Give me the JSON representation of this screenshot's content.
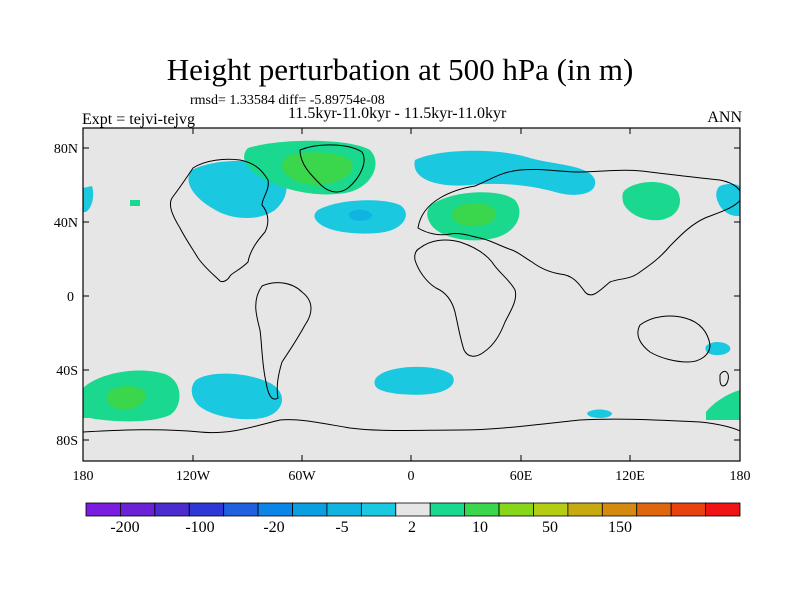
{
  "title": "Height perturbation at 500 hPa (in m)",
  "stats": "rmsd= 1.33584  diff= -5.89754e-08",
  "experiment": "Expt = tejvi-tejvg",
  "subtitle": "11.5kyr-11.0kyr - 11.5kyr-11.0kyr",
  "season": "ANN",
  "axes": {
    "lat_ticks": [
      "80N",
      "40N",
      "0",
      "40S",
      "80S"
    ],
    "lon_ticks": [
      "180",
      "120W",
      "60W",
      "0",
      "60E",
      "120E",
      "180"
    ]
  },
  "colorbar": {
    "colors": [
      "#7b1de0",
      "#6b22d6",
      "#4a2ccf",
      "#2f37d6",
      "#1f5fe0",
      "#0b86e8",
      "#0a9fe0",
      "#0fb4e0",
      "#1ac8df",
      "#e6e6e6",
      "#1ad98e",
      "#3ad64b",
      "#87d61a",
      "#b4cc12",
      "#c7aa10",
      "#d48a0e",
      "#e0660e",
      "#e8420e",
      "#f01414"
    ],
    "labels": [
      "-200",
      "-100",
      "-20",
      "-5",
      "2",
      "10",
      "50",
      "150"
    ]
  },
  "colors": {
    "ocean": "#e6e6e6",
    "cyan": "#1ac8df",
    "green": "#1ad98e",
    "strong_green": "#3ad64b"
  },
  "chart_data": {
    "type": "heatmap",
    "title": "Height perturbation at 500 hPa (in m)",
    "region": "global",
    "xlim": [
      -180,
      180
    ],
    "ylim": [
      -90,
      90
    ],
    "contour_levels": [
      -200,
      -100,
      -20,
      -5,
      2,
      10,
      50,
      150
    ],
    "anomalies": [
      {
        "lon": -35,
        "lat": 72,
        "level": "positive 2-10",
        "peak": "10+"
      },
      {
        "lon": -90,
        "lat": 62,
        "level": "negative 2-5"
      },
      {
        "lon": -30,
        "lat": 42,
        "level": "negative 2-5",
        "peak": "-5"
      },
      {
        "lon": 60,
        "lat": 75,
        "level": "negative 2-5"
      },
      {
        "lon": 90,
        "lat": 65,
        "level": "negative 2-5"
      },
      {
        "lon": 35,
        "lat": 45,
        "level": "positive 2-10",
        "peak": "10+"
      },
      {
        "lon": 150,
        "lat": 55,
        "level": "positive 2-10"
      },
      {
        "lon": 180,
        "lat": 50,
        "level": "negative 2-5"
      },
      {
        "lon": -160,
        "lat": 47,
        "level": "positive 2-10"
      },
      {
        "lon": -160,
        "lat": -55,
        "level": "positive 2-10",
        "peak": "10+"
      },
      {
        "lon": -90,
        "lat": -58,
        "level": "negative 2-5"
      },
      {
        "lon": 10,
        "lat": -47,
        "level": "negative 2-5"
      },
      {
        "lon": 100,
        "lat": -65,
        "level": "negative 2-5"
      },
      {
        "lon": 165,
        "lat": -28,
        "level": "negative 2-5"
      },
      {
        "lon": 170,
        "lat": -60,
        "level": "positive 2-10"
      }
    ]
  }
}
